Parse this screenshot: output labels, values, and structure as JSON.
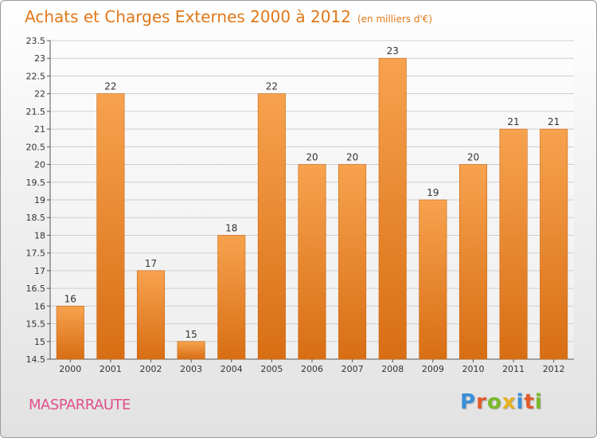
{
  "header": {
    "title": "Achats et Charges Externes 2000 à 2012",
    "subtitle": "(en milliers d'€)"
  },
  "footer": {
    "commune": "MASPARRAUTE",
    "brand_letters": [
      {
        "ch": "P",
        "color": "#3a8fd8"
      },
      {
        "ch": "r",
        "color": "#e05a2a"
      },
      {
        "ch": "o",
        "color": "#7ab828"
      },
      {
        "ch": "x",
        "color": "#e8b020"
      },
      {
        "ch": "i",
        "color": "#3a8fd8"
      },
      {
        "ch": "t",
        "color": "#e05a2a"
      },
      {
        "ch": "i",
        "color": "#7ab828"
      }
    ]
  },
  "colors": {
    "bar_top": "#f7a24e",
    "bar_bottom": "#d86e14",
    "bar_edge": "#c8640e",
    "grid": "#cfcfcf"
  },
  "chart_data": {
    "type": "bar",
    "title": "Achats et Charges Externes 2000 à 2012",
    "subtitle": "(en milliers d'€)",
    "categories": [
      "2000",
      "2001",
      "2002",
      "2003",
      "2004",
      "2005",
      "2006",
      "2007",
      "2008",
      "2009",
      "2010",
      "2011",
      "2012"
    ],
    "values": [
      16,
      22,
      17,
      15,
      18,
      22,
      20,
      20,
      23,
      19,
      20,
      21,
      21
    ],
    "value_labels": [
      "16",
      "22",
      "17",
      "15",
      "18",
      "22",
      "20",
      "20",
      "23",
      "19",
      "20",
      "21",
      "21"
    ],
    "ylim": [
      14.5,
      23.5
    ],
    "yticks": [
      "14.5",
      "15",
      "15.5",
      "16",
      "16.5",
      "17",
      "17.5",
      "18",
      "18.5",
      "19",
      "19.5",
      "20",
      "20.5",
      "21",
      "21.5",
      "22",
      "22.5",
      "23",
      "23.5"
    ],
    "grid": true,
    "legend": "none"
  }
}
